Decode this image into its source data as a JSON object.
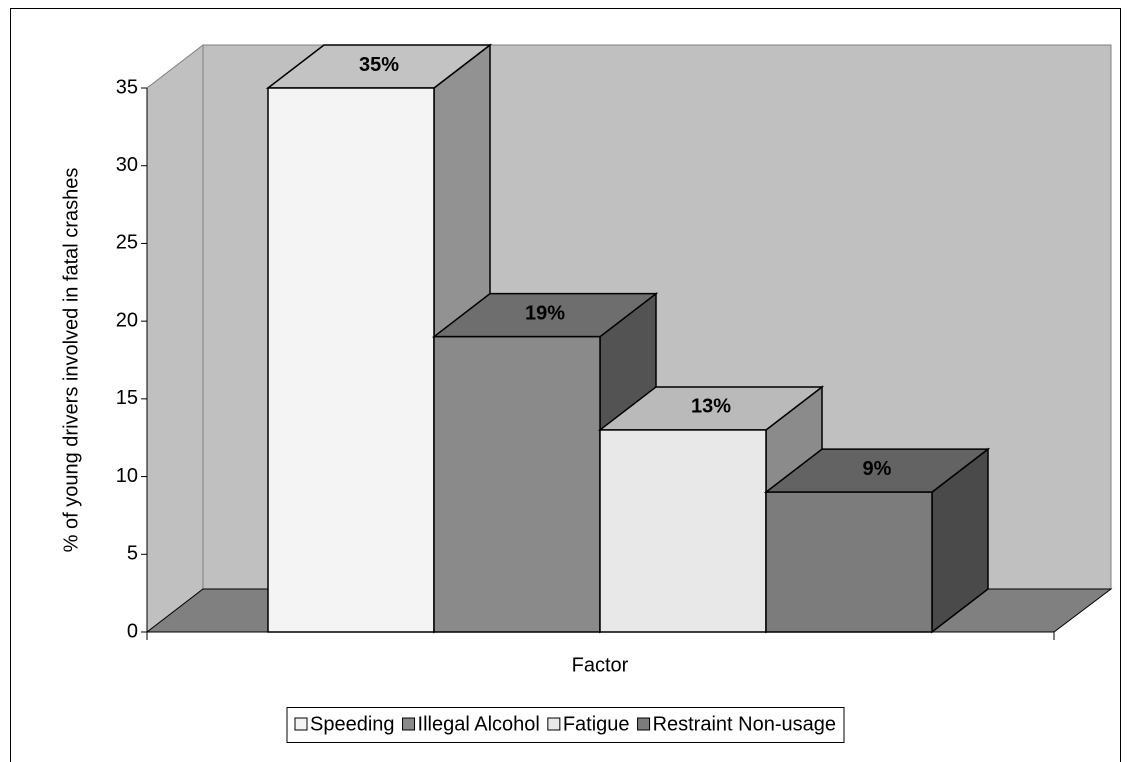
{
  "chart_data": {
    "type": "bar3d",
    "y_label": "% of young drivers involved in fatal crashes",
    "x_label": "Factor",
    "categories": [
      null
    ],
    "series": [
      {
        "name": "Speeding",
        "color": "#f4f4f4",
        "values": [
          35
        ],
        "value_labels": [
          "35%"
        ]
      },
      {
        "name": "Illegal Alcohol",
        "color": "#8a8a8a",
        "values": [
          19
        ],
        "value_labels": [
          "19%"
        ]
      },
      {
        "name": "Fatigue",
        "color": "#e8e8e8",
        "values": [
          13
        ],
        "value_labels": [
          "13%"
        ]
      },
      {
        "name": "Restraint Non-usage",
        "color": "#7c7c7c",
        "values": [
          9
        ],
        "value_labels": [
          "9%"
        ]
      }
    ],
    "ylim": [
      0,
      35
    ],
    "yticks": [
      0,
      5,
      10,
      15,
      20,
      25,
      30,
      35
    ],
    "grid": false,
    "legend": "bottom",
    "wall_color": "#c0c0c0",
    "floor_color": "#808080"
  }
}
